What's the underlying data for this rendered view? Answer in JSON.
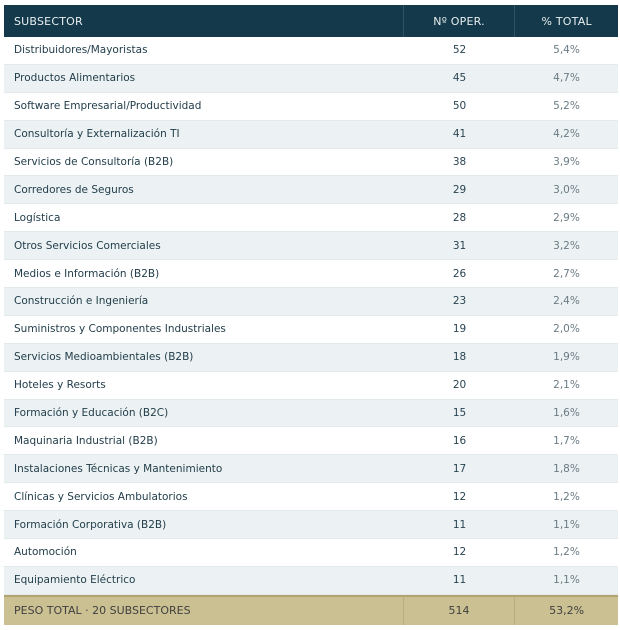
{
  "table": {
    "headers": {
      "subsector": "SUBSECTOR",
      "operations": "Nº OPER.",
      "percent": "% TOTAL"
    },
    "rows": [
      {
        "subsector": "Distribuidores/Mayoristas",
        "operations": "52",
        "percent": "5,4%"
      },
      {
        "subsector": "Productos Alimentarios",
        "operations": "45",
        "percent": "4,7%"
      },
      {
        "subsector": "Software Empresarial/Productividad",
        "operations": "50",
        "percent": "5,2%"
      },
      {
        "subsector": "Consultoría y Externalización TI",
        "operations": "41",
        "percent": "4,2%"
      },
      {
        "subsector": "Servicios de Consultoría (B2B)",
        "operations": "38",
        "percent": "3,9%"
      },
      {
        "subsector": "Corredores de Seguros",
        "operations": "29",
        "percent": "3,0%"
      },
      {
        "subsector": "Logística",
        "operations": "28",
        "percent": "2,9%"
      },
      {
        "subsector": "Otros Servicios Comerciales",
        "operations": "31",
        "percent": "3,2%"
      },
      {
        "subsector": "Medios e Información (B2B)",
        "operations": "26",
        "percent": "2,7%"
      },
      {
        "subsector": "Construcción e Ingeniería",
        "operations": "23",
        "percent": "2,4%"
      },
      {
        "subsector": "Suministros y Componentes Industriales",
        "operations": "19",
        "percent": "2,0%"
      },
      {
        "subsector": "Servicios Medioambientales (B2B)",
        "operations": "18",
        "percent": "1,9%"
      },
      {
        "subsector": "Hoteles y Resorts",
        "operations": "20",
        "percent": "2,1%"
      },
      {
        "subsector": "Formación y Educación (B2C)",
        "operations": "15",
        "percent": "1,6%"
      },
      {
        "subsector": "Maquinaria Industrial (B2B)",
        "operations": "16",
        "percent": "1,7%"
      },
      {
        "subsector": "Instalaciones Técnicas y Mantenimiento",
        "operations": "17",
        "percent": "1,8%"
      },
      {
        "subsector": "Clínicas y Servicios Ambulatorios",
        "operations": "12",
        "percent": "1,2%"
      },
      {
        "subsector": "Formación Corporativa (B2B)",
        "operations": "11",
        "percent": "1,1%"
      },
      {
        "subsector": "Automoción",
        "operations": "12",
        "percent": "1,2%"
      },
      {
        "subsector": "Equipamiento Eléctrico",
        "operations": "11",
        "percent": "1,1%"
      }
    ],
    "footer": {
      "label": "PESO TOTAL · 20 SUBSECTORES",
      "operations": "514",
      "percent": "53,2%"
    },
    "colors": {
      "header_bg": "#13394a",
      "alt_row_bg": "#ecf2f3",
      "footer_bg": "#cbc092"
    }
  }
}
